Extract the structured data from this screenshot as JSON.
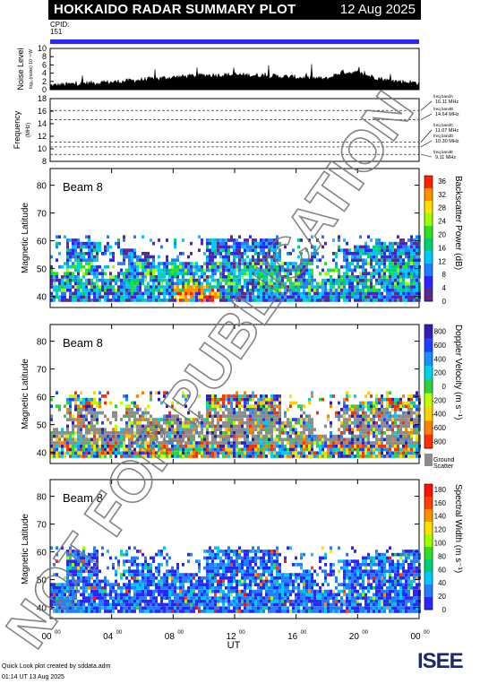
{
  "header": {
    "title": "HOKKAIDO RADAR SUMMARY PLOT",
    "date": "12 Aug 2025"
  },
  "cpid": {
    "label": "CPID:",
    "value": "151"
  },
  "colors": {
    "cpid_bar": "#2a24ff",
    "ground_scatter": "#8c8c8c"
  },
  "chart_data": [
    {
      "type": "area",
      "panel": "noise",
      "ylabel": "Noise Level",
      "ylabel_sub": "log₁₀(noise) 10⁻¹⁹W",
      "ylim": [
        0,
        10
      ],
      "yticks": [
        "0",
        "2",
        "4",
        "6",
        "8",
        "10"
      ],
      "x": [
        0,
        2,
        4,
        6,
        8,
        10,
        12,
        14,
        16,
        18,
        19,
        20,
        22,
        24
      ],
      "values": [
        1.0,
        1.5,
        1.8,
        2.4,
        3.0,
        3.5,
        3.6,
        3.4,
        3.0,
        2.6,
        4.3,
        4.0,
        2.2,
        1.6
      ]
    },
    {
      "type": "line",
      "panel": "frequency",
      "ylabel": "Frequency",
      "ylabel_sub": "(MHz)",
      "ylim": [
        8,
        18
      ],
      "yticks": [
        "8",
        "10",
        "12",
        "14",
        "16",
        "18"
      ],
      "dashed_levels": [
        16.11,
        14.64,
        11.07,
        10.3,
        9.11
      ],
      "bands": [
        {
          "label": "freq bandA",
          "value": "16.11 MHz"
        },
        {
          "label": "freq bandB",
          "value": "14.64 MHz"
        },
        {
          "label": "freq bandC",
          "value": "11.07 MHz"
        },
        {
          "label": "freq bandD",
          "value": "10.30 MHz"
        },
        {
          "label": "freq bandE",
          "value": "9.11 MHz"
        }
      ]
    },
    {
      "type": "heatmap",
      "panel": "power",
      "title": "Beam  8",
      "ylabel": "Magnetic Latitude",
      "ylim": [
        36,
        86
      ],
      "yticks": [
        "40",
        "50",
        "60",
        "70",
        "80"
      ],
      "colorbar_label": "Backscatter Power (dB)",
      "colorbar_ticks": [
        "0",
        "4",
        "8",
        "12",
        "16",
        "20",
        "24",
        "28",
        "32",
        "36"
      ]
    },
    {
      "type": "heatmap",
      "panel": "velocity",
      "title": "Beam  8",
      "ylabel": "Magnetic Latitude",
      "ylim": [
        36,
        86
      ],
      "yticks": [
        "40",
        "50",
        "60",
        "70",
        "80"
      ],
      "colorbar_label": "Doppler Velocity (m s⁻¹)",
      "colorbar_ticks": [
        "800",
        "600",
        "400",
        "200",
        "0",
        "-200",
        "-400",
        "-600",
        "-800"
      ],
      "ground_scatter_label": [
        "Ground",
        "Scatter"
      ]
    },
    {
      "type": "heatmap",
      "panel": "width",
      "title": "Beam  8",
      "ylabel": "Magnetic Latitude",
      "ylim": [
        36,
        86
      ],
      "yticks": [
        "40",
        "50",
        "60",
        "70",
        "80"
      ],
      "colorbar_label": "Spectral Width (m s⁻¹)",
      "colorbar_ticks": [
        "0",
        "20",
        "40",
        "60",
        "80",
        "100",
        "120",
        "140",
        "160",
        "180"
      ]
    }
  ],
  "xaxis": {
    "label": "UT",
    "ticks": [
      "00",
      "04",
      "08",
      "12",
      "16",
      "20",
      "00"
    ],
    "tick_sup": "00",
    "xlim": [
      0,
      24
    ]
  },
  "watermark": "NOT FOR PUBLICATION",
  "footer": {
    "line1": "Quick Look plot created by sddata.adm",
    "line2": "01:14 UT 13 Aug 2025"
  },
  "logo": {
    "text": "ISEE"
  }
}
